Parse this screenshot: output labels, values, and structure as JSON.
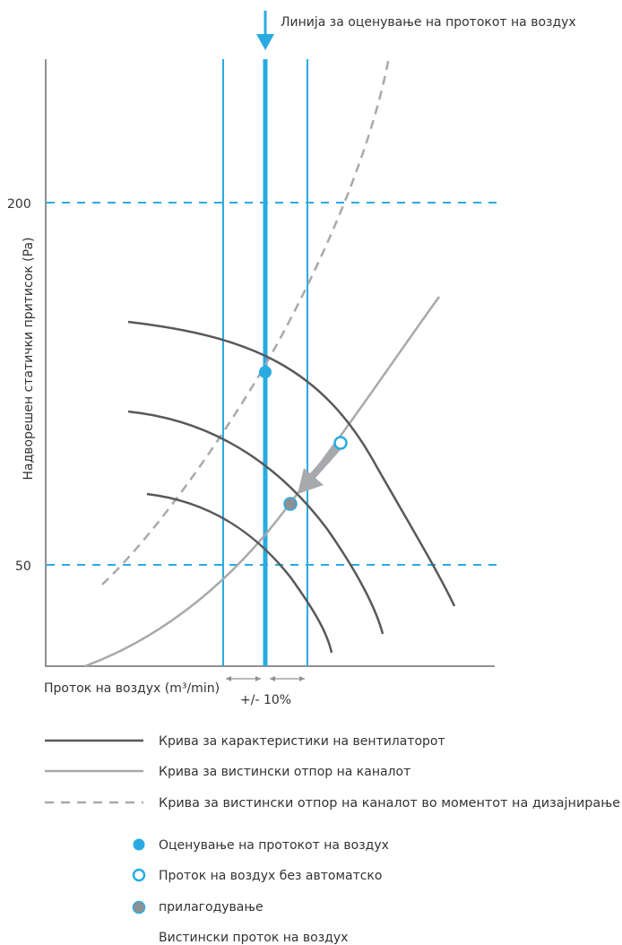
{
  "colors": {
    "accent": "#29abe2",
    "fan_curve": "#58595b",
    "resistance_curve": "#a7a9ac",
    "axis": "#8f9094",
    "text": "#333333"
  },
  "annotation": {
    "rating_line_label": "Линија за оценување на протокот на воздух"
  },
  "chart_data": {
    "type": "line",
    "title": "",
    "xlabel": "Проток на воздух (m³/min)",
    "ylabel": "Надворешен статички притисок (Pa)",
    "y_ticks": [
      "200",
      "50"
    ],
    "tolerance_label": "+/- 10%",
    "grid": "dashed reference lines at 200 and 50",
    "series": [
      {
        "kind": "fan_curve"
      },
      {
        "kind": "fan_curve"
      },
      {
        "kind": "fan_curve"
      },
      {
        "kind": "actual_resistance"
      },
      {
        "kind": "design_resistance"
      }
    ],
    "points": [
      {
        "kind": "rated_airflow"
      },
      {
        "kind": "airflow_without_auto_adjust"
      },
      {
        "kind": "actual_airflow"
      }
    ]
  },
  "legend": {
    "line_items": [
      {
        "label": "Крива за карактеристики на вентилаторот"
      },
      {
        "label": "Крива за вистински отпор на каналот"
      },
      {
        "label": "Крива за вистински отпор на каналот во моментот на дизајнирање"
      }
    ],
    "marker_items": [
      {
        "label": "Оценување на протокот на воздух"
      },
      {
        "label": "Проток на воздух без автоматско"
      },
      {
        "label": "прилагодување"
      },
      {
        "label": "Вистински проток на воздух"
      }
    ]
  }
}
